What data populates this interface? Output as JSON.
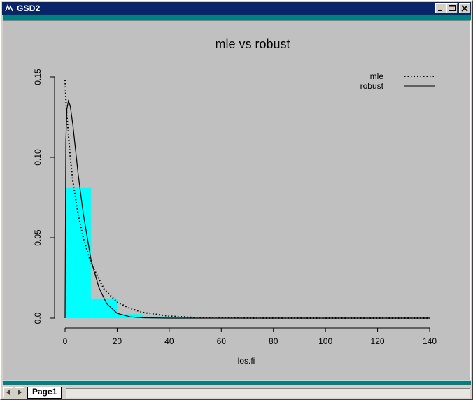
{
  "window": {
    "title": "GSD2",
    "controls": {
      "minimize": "minimize-icon",
      "maximize": "maximize-icon",
      "close": "close-icon"
    }
  },
  "colors": {
    "titlebar": "#0a246a",
    "teal": "#008080",
    "plot_bg": "#c0c0c0",
    "bars": "#00ffff"
  },
  "chart_data": {
    "type": "bar",
    "title": "mle vs robust",
    "xlabel": "los.fi",
    "ylabel": "",
    "xlim": [
      0,
      140
    ],
    "ylim": [
      0,
      0.15
    ],
    "x_ticks": [
      0,
      20,
      40,
      60,
      80,
      100,
      120,
      140
    ],
    "x_tick_labels": [
      "0",
      "20",
      "40",
      "60",
      "80",
      "100",
      "120",
      "140"
    ],
    "y_ticks": [
      0.0,
      0.05,
      0.1,
      0.15
    ],
    "y_tick_labels": [
      "0.0",
      "0.05",
      "0.10",
      "0.15"
    ],
    "histogram": {
      "bins": [
        [
          0,
          10
        ],
        [
          10,
          20
        ],
        [
          20,
          30
        ],
        [
          30,
          40
        ],
        [
          40,
          50
        ]
      ],
      "values": [
        0.081,
        0.012,
        0.0025,
        0.001,
        0.0004
      ]
    },
    "legend": {
      "placement": "top-right",
      "entries": [
        {
          "label": "mle",
          "style": "dotted"
        },
        {
          "label": "robust",
          "style": "solid"
        }
      ]
    },
    "series": [
      {
        "name": "mle",
        "style": "dotted",
        "x": [
          0,
          0.5,
          1,
          2,
          3,
          5,
          7,
          10,
          15,
          20,
          25,
          30,
          40,
          50,
          70,
          100,
          140
        ],
        "y": [
          0.148,
          0.13,
          0.12,
          0.1,
          0.085,
          0.065,
          0.05,
          0.034,
          0.018,
          0.01,
          0.006,
          0.0035,
          0.0012,
          0.0004,
          0.0001,
          0,
          0
        ]
      },
      {
        "name": "robust",
        "style": "solid",
        "x": [
          0,
          0.3,
          0.7,
          1.3,
          2,
          3,
          5,
          7,
          10,
          13,
          16,
          20,
          25,
          30,
          40,
          60,
          140
        ],
        "y": [
          0.0,
          0.11,
          0.13,
          0.135,
          0.132,
          0.12,
          0.09,
          0.065,
          0.036,
          0.019,
          0.009,
          0.003,
          0.0008,
          0.0002,
          0,
          0,
          0
        ]
      }
    ]
  },
  "statusbar": {
    "tab_label": "Page1",
    "prev_icon": "triangle-left-icon",
    "next_icon": "triangle-right-icon"
  }
}
